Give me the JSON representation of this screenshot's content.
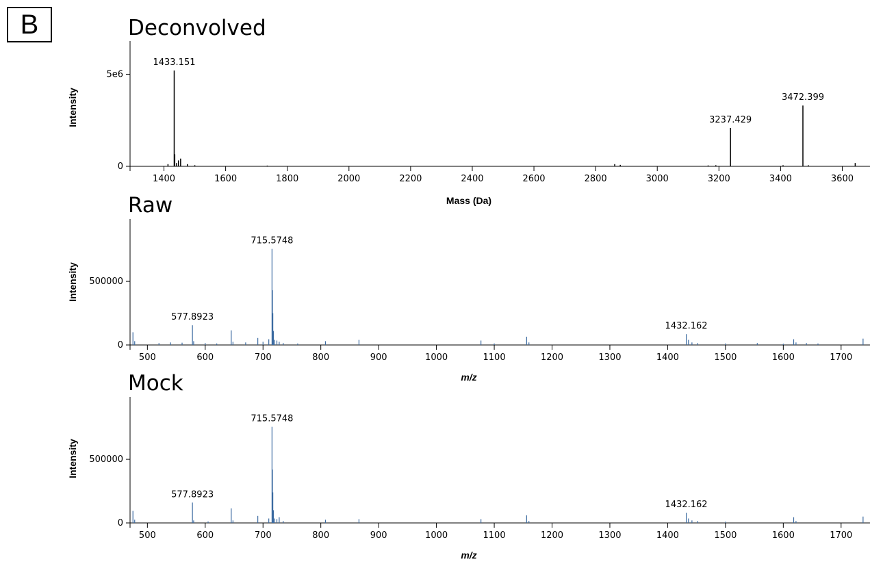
{
  "panel_label": "B",
  "colors": {
    "deconvolved": "#000000",
    "spectrum": "#3b6aa0",
    "axis": "#000000"
  },
  "chart_data": [
    {
      "type": "bar",
      "title": "Deconvolved",
      "xlabel": "Mass (Da)",
      "ylabel": "Intensity",
      "xlim": [
        1290,
        3690
      ],
      "ylim": [
        0,
        6800000
      ],
      "xticks": [
        1400,
        1600,
        1800,
        2000,
        2200,
        2400,
        2600,
        2800,
        3000,
        3200,
        3400,
        3600
      ],
      "yticks": [
        {
          "value": 0,
          "label": "0"
        },
        {
          "value": 5000000,
          "label": "5e6"
        }
      ],
      "peaks": [
        {
          "x": 1413,
          "y": 120000
        },
        {
          "x": 1433.151,
          "y": 5200000,
          "label": "1433.151"
        },
        {
          "x": 1435,
          "y": 650000
        },
        {
          "x": 1441,
          "y": 180000
        },
        {
          "x": 1447,
          "y": 320000
        },
        {
          "x": 1454,
          "y": 420000
        },
        {
          "x": 1476,
          "y": 120000
        },
        {
          "x": 1500,
          "y": 60000
        },
        {
          "x": 1735,
          "y": 40000
        },
        {
          "x": 2862,
          "y": 120000
        },
        {
          "x": 2880,
          "y": 80000
        },
        {
          "x": 3165,
          "y": 50000
        },
        {
          "x": 3190,
          "y": 60000
        },
        {
          "x": 3237.429,
          "y": 2080000,
          "label": "3237.429"
        },
        {
          "x": 3408,
          "y": 60000
        },
        {
          "x": 3472.399,
          "y": 3300000,
          "label": "3472.399"
        },
        {
          "x": 3490,
          "y": 60000
        },
        {
          "x": 3642,
          "y": 180000
        }
      ]
    },
    {
      "type": "line",
      "title": "Raw",
      "xlabel": "m/z",
      "ylabel": "Intensity",
      "xlim": [
        470,
        1750
      ],
      "ylim": [
        0,
        990000
      ],
      "xticks": [
        500,
        600,
        700,
        800,
        900,
        1000,
        1100,
        1200,
        1300,
        1400,
        1500,
        1600,
        1700
      ],
      "yticks": [
        {
          "value": 0,
          "label": "0"
        },
        {
          "value": 500000,
          "label": "500000"
        }
      ],
      "peaks": [
        {
          "x": 475,
          "y": 100000
        },
        {
          "x": 478,
          "y": 30000
        },
        {
          "x": 520,
          "y": 15000
        },
        {
          "x": 540,
          "y": 20000
        },
        {
          "x": 560,
          "y": 18000
        },
        {
          "x": 577.8923,
          "y": 155000,
          "label": "577.8923"
        },
        {
          "x": 580,
          "y": 30000
        },
        {
          "x": 600,
          "y": 15000
        },
        {
          "x": 620,
          "y": 12000
        },
        {
          "x": 645,
          "y": 115000
        },
        {
          "x": 648,
          "y": 25000
        },
        {
          "x": 670,
          "y": 20000
        },
        {
          "x": 691,
          "y": 55000
        },
        {
          "x": 700,
          "y": 25000
        },
        {
          "x": 710,
          "y": 45000
        },
        {
          "x": 715.5748,
          "y": 755000,
          "label": "715.5748"
        },
        {
          "x": 716.3,
          "y": 430000
        },
        {
          "x": 717,
          "y": 250000
        },
        {
          "x": 718,
          "y": 110000
        },
        {
          "x": 720,
          "y": 40000
        },
        {
          "x": 724,
          "y": 35000
        },
        {
          "x": 728,
          "y": 25000
        },
        {
          "x": 735,
          "y": 15000
        },
        {
          "x": 760,
          "y": 12000
        },
        {
          "x": 808,
          "y": 30000
        },
        {
          "x": 866,
          "y": 40000
        },
        {
          "x": 1077,
          "y": 35000
        },
        {
          "x": 1100,
          "y": 12000
        },
        {
          "x": 1156,
          "y": 65000
        },
        {
          "x": 1160,
          "y": 20000
        },
        {
          "x": 1432.162,
          "y": 85000,
          "label": "1432.162"
        },
        {
          "x": 1436,
          "y": 40000
        },
        {
          "x": 1442,
          "y": 20000
        },
        {
          "x": 1452,
          "y": 15000
        },
        {
          "x": 1500,
          "y": 12000
        },
        {
          "x": 1555,
          "y": 15000
        },
        {
          "x": 1600,
          "y": 10000
        },
        {
          "x": 1618,
          "y": 45000
        },
        {
          "x": 1622,
          "y": 20000
        },
        {
          "x": 1640,
          "y": 15000
        },
        {
          "x": 1660,
          "y": 12000
        },
        {
          "x": 1738,
          "y": 50000
        }
      ]
    },
    {
      "type": "line",
      "title": "Mock",
      "xlabel": "m/z",
      "ylabel": "Intensity",
      "xlim": [
        470,
        1750
      ],
      "ylim": [
        0,
        990000
      ],
      "xticks": [
        500,
        600,
        700,
        800,
        900,
        1000,
        1100,
        1200,
        1300,
        1400,
        1500,
        1600,
        1700
      ],
      "yticks": [
        {
          "value": 0,
          "label": "0"
        },
        {
          "value": 500000,
          "label": "500000"
        }
      ],
      "peaks": [
        {
          "x": 475,
          "y": 95000
        },
        {
          "x": 478,
          "y": 25000
        },
        {
          "x": 577.8923,
          "y": 160000,
          "label": "577.8923"
        },
        {
          "x": 580,
          "y": 20000
        },
        {
          "x": 605,
          "y": 12000
        },
        {
          "x": 645,
          "y": 115000
        },
        {
          "x": 648,
          "y": 20000
        },
        {
          "x": 691,
          "y": 55000
        },
        {
          "x": 710,
          "y": 35000
        },
        {
          "x": 715.5748,
          "y": 755000,
          "label": "715.5748"
        },
        {
          "x": 716.3,
          "y": 420000
        },
        {
          "x": 717,
          "y": 240000
        },
        {
          "x": 718,
          "y": 100000
        },
        {
          "x": 720,
          "y": 35000
        },
        {
          "x": 724,
          "y": 30000
        },
        {
          "x": 728,
          "y": 45000
        },
        {
          "x": 735,
          "y": 15000
        },
        {
          "x": 808,
          "y": 25000
        },
        {
          "x": 866,
          "y": 30000
        },
        {
          "x": 1077,
          "y": 30000
        },
        {
          "x": 1156,
          "y": 60000
        },
        {
          "x": 1160,
          "y": 15000
        },
        {
          "x": 1432.162,
          "y": 80000,
          "label": "1432.162"
        },
        {
          "x": 1436,
          "y": 35000
        },
        {
          "x": 1442,
          "y": 20000
        },
        {
          "x": 1452,
          "y": 15000
        },
        {
          "x": 1500,
          "y": 10000
        },
        {
          "x": 1618,
          "y": 45000
        },
        {
          "x": 1622,
          "y": 15000
        },
        {
          "x": 1738,
          "y": 50000
        }
      ]
    }
  ]
}
